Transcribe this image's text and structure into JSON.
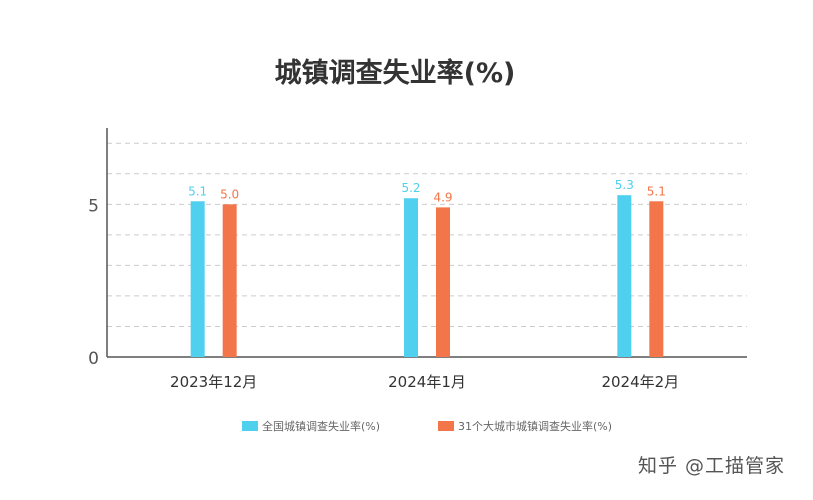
{
  "chart_data": {
    "type": "bar",
    "title": "城镇调查失业率(%)",
    "categories": [
      "2023年12月",
      "2024年1月",
      "2024年2月"
    ],
    "series": [
      {
        "name": "全国城镇调查失业率(%)",
        "values": [
          5.1,
          5.2,
          5.3
        ],
        "color": "#4fd0ef"
      },
      {
        "name": "31个大城市城镇调查失业率(%)",
        "values": [
          5.0,
          4.9,
          5.1
        ],
        "color": "#f3764a"
      }
    ],
    "y_ticks": [
      "0",
      "5"
    ],
    "ylim": [
      0,
      7.5
    ],
    "xlabel": "",
    "ylabel": "",
    "grid": "dashed horizontal",
    "legend_position": "bottom"
  },
  "watermark": {
    "footer_text": "知乎 @工描管家"
  }
}
